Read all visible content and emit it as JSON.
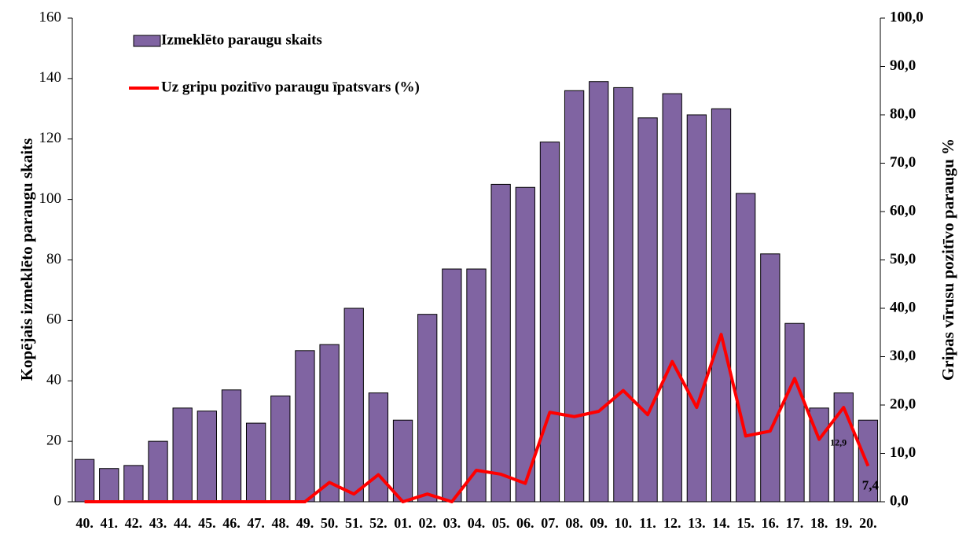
{
  "chart_data": {
    "type": "bar_line",
    "categories": [
      "40.",
      "41.",
      "42.",
      "43.",
      "44.",
      "45.",
      "46.",
      "47.",
      "48.",
      "49.",
      "50.",
      "51.",
      "52.",
      "01.",
      "02.",
      "03.",
      "04.",
      "05.",
      "06.",
      "07.",
      "08.",
      "09.",
      "10.",
      "11.",
      "12.",
      "13.",
      "14.",
      "15.",
      "16.",
      "17.",
      "18.",
      "19.",
      "20."
    ],
    "series": [
      {
        "name": "Izmeklēto paraugu skaits",
        "type": "bar",
        "color": "#8064a2",
        "values": [
          14,
          11,
          12,
          20,
          31,
          30,
          37,
          26,
          35,
          50,
          52,
          64,
          36,
          27,
          62,
          77,
          77,
          105,
          104,
          119,
          136,
          139,
          137,
          127,
          135,
          128,
          130,
          102,
          82,
          59,
          31,
          36,
          27
        ]
      },
      {
        "name": "Uz gripu pozitīvo paraugu īpatsvars (%)",
        "type": "line",
        "axis": "y2",
        "color": "#ff0000",
        "values": [
          0,
          0,
          0,
          0,
          0,
          0,
          0,
          0,
          0,
          0,
          4,
          1.6,
          5.6,
          0,
          1.6,
          0,
          6.5,
          5.7,
          3.8,
          18.5,
          17.6,
          18.7,
          23,
          18,
          29,
          19.5,
          34.6,
          13.6,
          14.6,
          25.5,
          12.9,
          19.5,
          7.4
        ],
        "value_labels": [
          null,
          null,
          null,
          null,
          null,
          null,
          null,
          null,
          null,
          null,
          null,
          null,
          null,
          null,
          null,
          null,
          null,
          null,
          null,
          null,
          null,
          null,
          null,
          null,
          null,
          null,
          null,
          null,
          null,
          null,
          "12,9",
          null,
          "7,4"
        ]
      }
    ],
    "ylabel": "Kopējais izmeklēto paraugu skaits",
    "y2label": "Gripas vīrusu pozitīvo paraugu %",
    "ylim": [
      0,
      160
    ],
    "yticks": [
      0,
      20,
      40,
      60,
      80,
      100,
      120,
      140,
      160
    ],
    "y2lim": [
      0,
      100
    ],
    "y2ticks": [
      {
        "value": 0,
        "label": "0,0"
      },
      {
        "value": 10,
        "label": "10,0"
      },
      {
        "value": 20,
        "label": "20,0"
      },
      {
        "value": 30,
        "label": "30,0"
      },
      {
        "value": 40,
        "label": "40,0"
      },
      {
        "value": 50,
        "label": "50,0"
      },
      {
        "value": 60,
        "label": "60,0"
      },
      {
        "value": 70,
        "label": "70,0"
      },
      {
        "value": 80,
        "label": "80,0"
      },
      {
        "value": 90,
        "label": "90,0"
      },
      {
        "value": 100,
        "label": "100,0"
      }
    ],
    "legend": "top-left",
    "grid": false
  }
}
